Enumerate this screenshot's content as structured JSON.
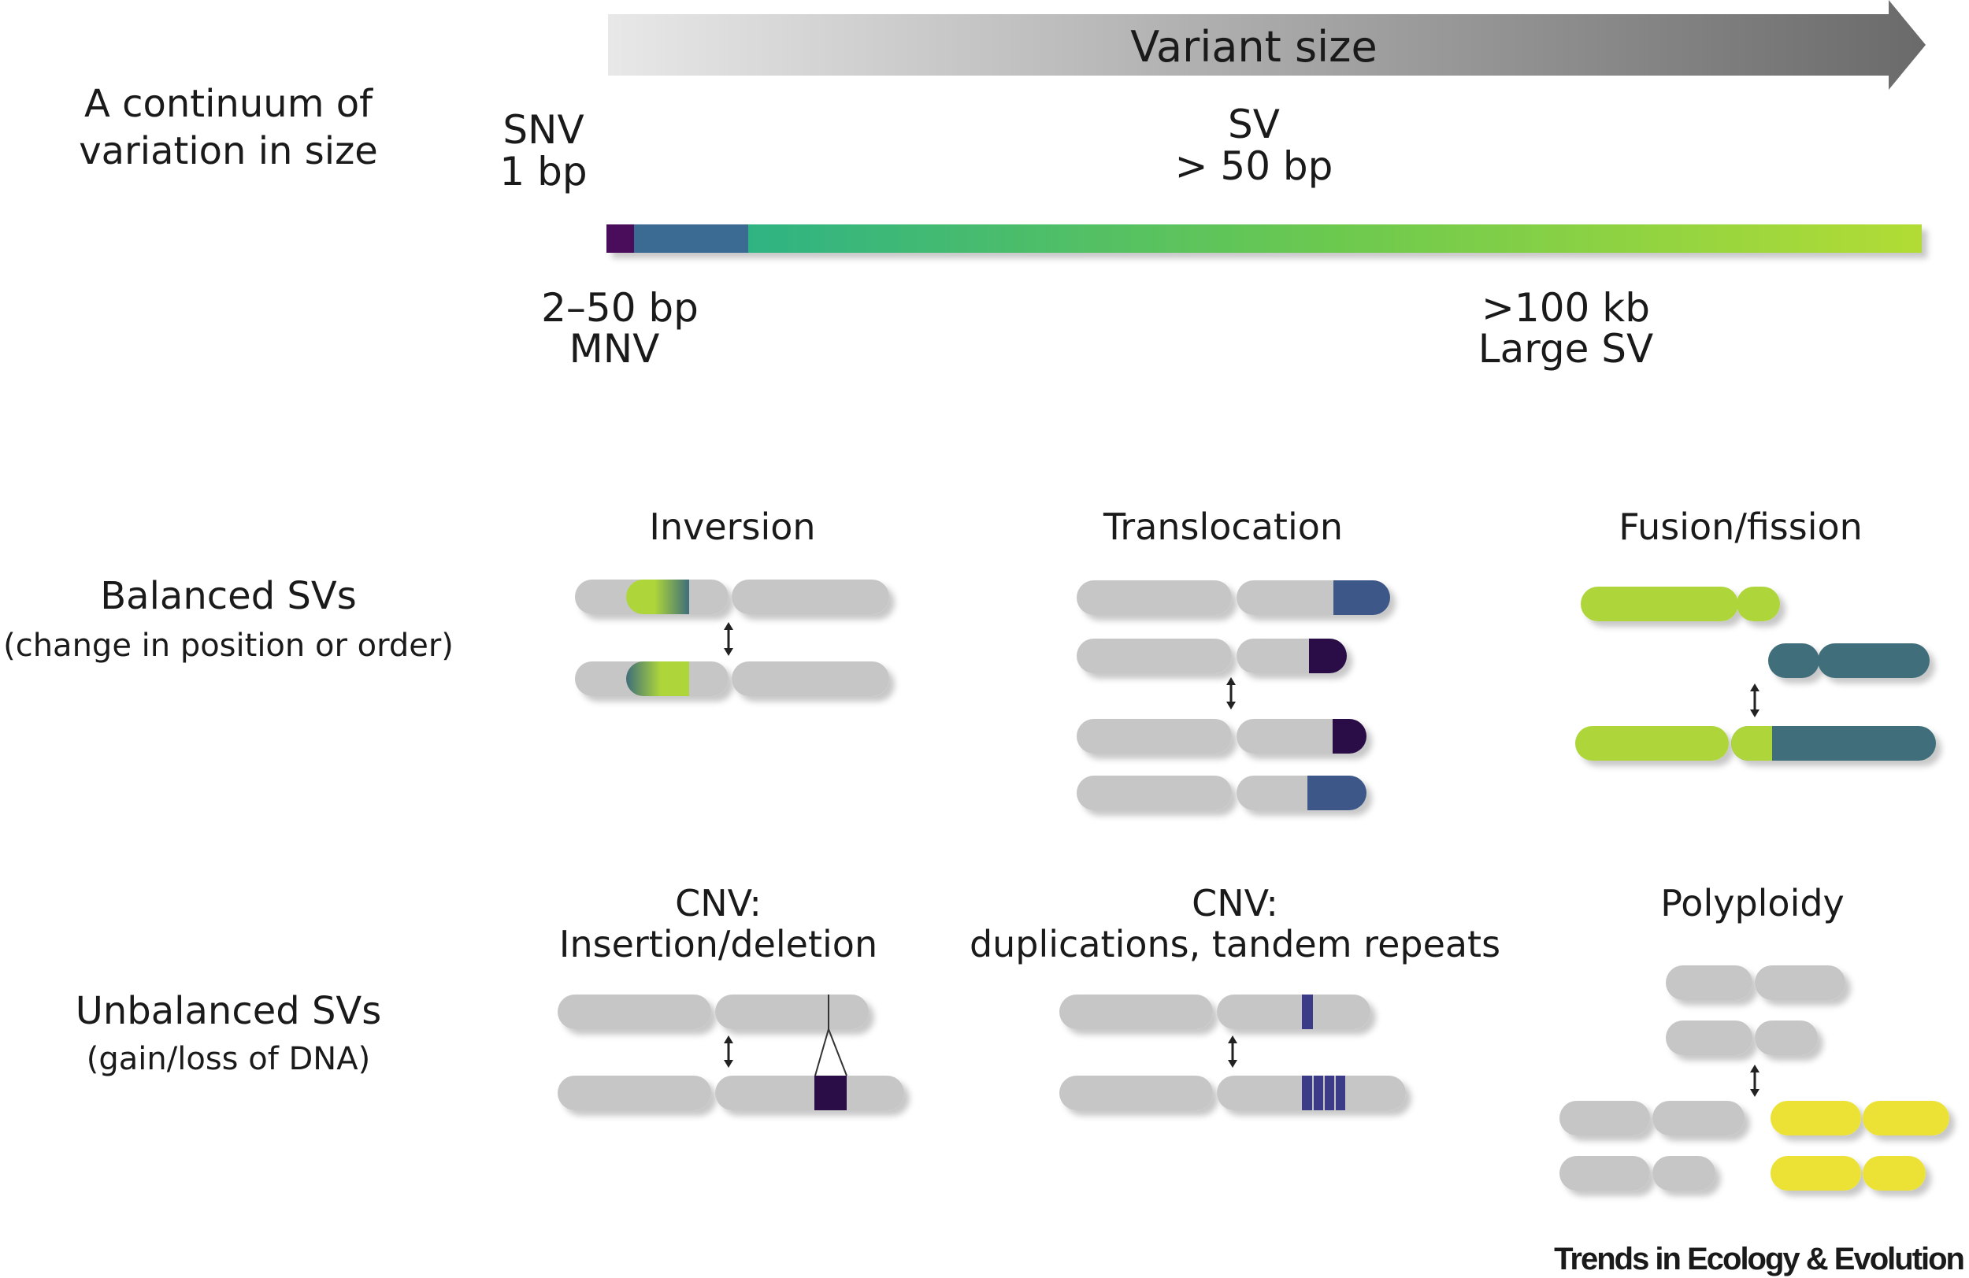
{
  "size_scale": {
    "arrow_label": "Variant size",
    "row_label_line1": "A continuum of",
    "row_label_line2": "variation in size",
    "snv_line1": "SNV",
    "snv_line2": "1 bp",
    "sv_line1": "SV",
    "sv_line2": "> 50 bp",
    "mnv_line1": "2–50 bp",
    "mnv_line2": "MNV",
    "large_line1": ">100 kb",
    "large_line2": "Large SV"
  },
  "balanced": {
    "row_label_line1": "Balanced SVs",
    "row_label_line2": "(change in position or order)",
    "inversion_title": "Inversion",
    "translocation_title": "Translocation",
    "fusion_title": "Fusion/fission"
  },
  "unbalanced": {
    "row_label_line1": "Unbalanced SVs",
    "row_label_line2": "(gain/loss of DNA)",
    "indel_title_line1": "CNV:",
    "indel_title_line2": "Insertion/deletion",
    "dup_title_line1": "CNV:",
    "dup_title_line2": "duplications, tandem repeats",
    "polyploidy_title": "Polyploidy"
  },
  "footer": {
    "journal": "Trends in Ecology & Evolution"
  },
  "colors": {
    "chromosome_gray": "#c6c6c6",
    "navy": "#3d5888",
    "dark_purple": "#2a0e46",
    "lime": "#aed63a",
    "teal": "#3f6e7a",
    "indigo": "#2e2e7a",
    "yellow": "#ebe235"
  }
}
